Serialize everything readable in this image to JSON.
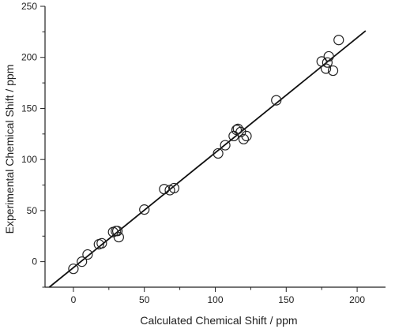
{
  "chart_data": {
    "type": "scatter",
    "xlabel": "Calculated Chemical Shift / ppm",
    "ylabel": "Experimental Chemical Shift / ppm",
    "xlim": [
      -20,
      220
    ],
    "ylim": [
      -25,
      250
    ],
    "xticks": [
      0,
      50,
      100,
      150,
      200
    ],
    "yticks": [
      0,
      50,
      100,
      150,
      200,
      250
    ],
    "grid": false,
    "legend": "none",
    "marker": "open-circle",
    "colors": {
      "marker_stroke": "#222222",
      "line": "#111111",
      "axis": "#222222"
    },
    "fit_line": {
      "x": [
        -17,
        206
      ],
      "y": [
        -25,
        226
      ]
    },
    "series": [
      {
        "x": [
          0,
          6,
          10,
          18,
          20,
          28,
          30,
          31,
          32,
          50,
          64,
          68,
          71,
          102,
          107,
          113,
          115,
          116,
          118,
          120,
          122,
          143,
          175,
          178,
          179,
          180,
          183,
          187
        ],
        "y": [
          -7,
          0,
          7,
          17,
          18,
          29,
          30,
          30,
          24,
          51,
          71,
          70,
          72,
          106,
          114,
          123,
          129,
          130,
          127,
          120,
          123,
          158,
          196,
          189,
          195,
          201,
          187,
          217
        ]
      }
    ]
  }
}
